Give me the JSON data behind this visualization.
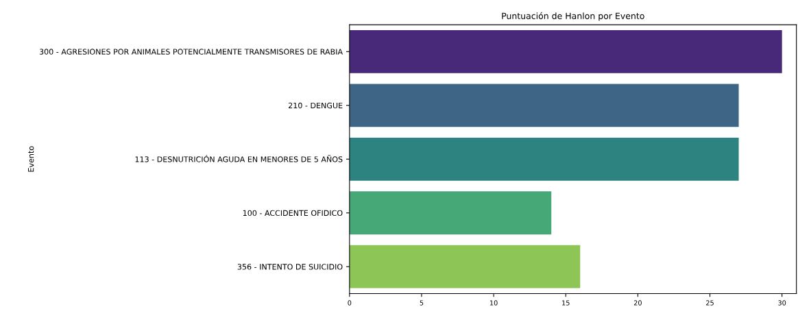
{
  "chart_data": {
    "type": "bar",
    "orientation": "horizontal",
    "title": "Puntuación de Hanlon por Evento",
    "ylabel": "Evento",
    "categories": [
      "300 - AGRESIONES POR ANIMALES POTENCIALMENTE TRANSMISORES DE RABIA",
      "210 - DENGUE",
      "113 - DESNUTRICIÓN AGUDA EN MENORES DE 5 AÑOS",
      "100 - ACCIDENTE OFIDICO",
      "356 - INTENTO DE SUICIDIO"
    ],
    "values": [
      30,
      27,
      27,
      14,
      16
    ],
    "colors": [
      "#482878",
      "#3e6586",
      "#2c837f",
      "#45a876",
      "#8dc556"
    ],
    "xlim": [
      0,
      31
    ],
    "xticks": [
      0,
      5,
      10,
      15,
      20,
      25,
      30
    ],
    "grid": false
  }
}
